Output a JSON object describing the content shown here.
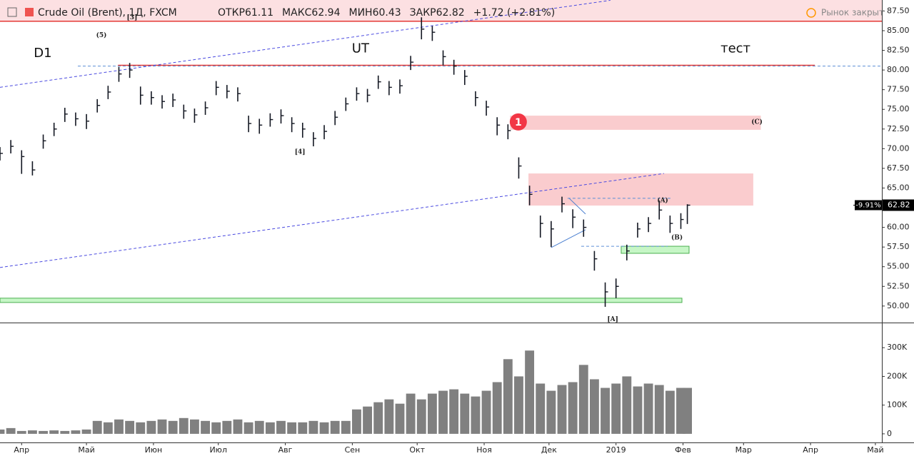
{
  "chart_data": {
    "type": "ohlc",
    "title": "Crude Oil (Brent), 1Д, FXCM",
    "ohlc_header": [
      "ОТКР61.11",
      "МАКС62.94",
      "МИН60.43",
      "ЗАКР62.82",
      "+1.72 (+2.81%)"
    ],
    "status": "Рынок закрыт",
    "x": [
      -10,
      -5,
      0,
      5,
      10,
      15,
      20,
      25,
      30,
      35,
      40,
      45,
      50,
      55,
      60,
      65,
      70,
      75,
      80,
      85,
      90,
      95,
      100,
      105,
      110,
      115,
      120,
      125,
      130,
      135,
      140,
      145,
      150,
      155,
      160,
      165,
      170,
      175,
      180,
      185,
      190,
      195,
      200,
      205,
      210,
      215,
      220,
      225,
      230,
      235,
      240,
      245,
      250,
      255,
      260,
      265,
      270,
      275,
      280,
      285,
      290,
      295,
      300,
      305,
      308
    ],
    "high": [
      70.2,
      71.1,
      69.8,
      68.4,
      71.8,
      73.3,
      75.2,
      74.6,
      74.4,
      76.3,
      78.0,
      80.4,
      80.9,
      77.9,
      77.3,
      76.8,
      77.0,
      75.6,
      75.1,
      76.0,
      78.6,
      78.1,
      77.8,
      74.2,
      73.8,
      74.5,
      75.0,
      74.0,
      73.3,
      72.1,
      73.0,
      74.8,
      76.5,
      77.8,
      77.6,
      79.3,
      78.6,
      78.8,
      81.8,
      86.7,
      85.6,
      82.5,
      81.3,
      80.0,
      77.3,
      76.1,
      74.0,
      73.1,
      68.9,
      65.3,
      61.5,
      60.8,
      63.9,
      62.3,
      61.0,
      57.0,
      53.0,
      53.5,
      57.8,
      60.6,
      61.3,
      63.4,
      61.5,
      61.8,
      62.94
    ],
    "low": [
      68.5,
      69.4,
      66.8,
      66.6,
      70.0,
      71.6,
      73.4,
      72.9,
      72.5,
      74.6,
      76.3,
      78.5,
      79.0,
      75.6,
      75.6,
      75.1,
      75.3,
      73.8,
      73.3,
      74.3,
      76.8,
      76.4,
      76.0,
      72.1,
      71.9,
      72.8,
      73.2,
      72.1,
      71.4,
      70.3,
      71.2,
      73.0,
      74.8,
      76.1,
      75.9,
      77.6,
      76.8,
      77.0,
      80.0,
      83.9,
      83.7,
      80.6,
      79.4,
      78.1,
      75.4,
      74.2,
      71.7,
      71.2,
      66.2,
      62.8,
      58.7,
      57.5,
      61.9,
      59.9,
      58.8,
      54.5,
      49.9,
      51.0,
      55.8,
      58.7,
      59.4,
      61.0,
      59.3,
      59.8,
      60.43
    ],
    "close": [
      69.4,
      70.3,
      69.0,
      67.3,
      71.0,
      72.5,
      74.4,
      73.8,
      73.5,
      75.5,
      77.2,
      79.5,
      80.0,
      76.8,
      76.5,
      76.0,
      76.2,
      74.8,
      74.3,
      75.2,
      77.8,
      77.3,
      77.0,
      73.2,
      73.0,
      73.7,
      74.2,
      73.2,
      72.5,
      71.3,
      72.2,
      74.0,
      75.7,
      77.0,
      76.8,
      78.5,
      77.8,
      78.0,
      81.0,
      85.2,
      84.8,
      81.7,
      80.5,
      79.2,
      76.5,
      75.3,
      73.0,
      72.3,
      67.8,
      64.2,
      60.5,
      59.8,
      63.0,
      61.3,
      60.0,
      56.0,
      51.8,
      52.5,
      57.0,
      59.8,
      60.5,
      62.2,
      60.5,
      61.0,
      62.82
    ],
    "volume": [
      15000,
      20000,
      10000,
      12000,
      10000,
      12000,
      10000,
      12000,
      15000,
      45000,
      40000,
      50000,
      45000,
      40000,
      45000,
      50000,
      45000,
      55000,
      50000,
      45000,
      40000,
      45000,
      50000,
      40000,
      45000,
      40000,
      45000,
      40000,
      40000,
      45000,
      40000,
      45000,
      45000,
      85000,
      95000,
      110000,
      120000,
      105000,
      140000,
      120000,
      140000,
      150000,
      155000,
      140000,
      130000,
      150000,
      180000,
      260000,
      200000,
      290000,
      175000,
      150000,
      170000,
      180000,
      240000,
      190000,
      160000,
      175000,
      200000,
      165000,
      175000,
      170000,
      150000,
      160000,
      160000
    ],
    "color": "#131722",
    "volume_color": "#808080",
    "xlim": [
      -10,
      398
    ],
    "xticks": [
      {
        "value": 0,
        "label": "Апр"
      },
      {
        "value": 30,
        "label": "Май"
      },
      {
        "value": 61,
        "label": "Июн"
      },
      {
        "value": 91,
        "label": "Июл"
      },
      {
        "value": 122,
        "label": "Авг"
      },
      {
        "value": 153,
        "label": "Сен"
      },
      {
        "value": 183,
        "label": "Окт"
      },
      {
        "value": 214,
        "label": "Ноя"
      },
      {
        "value": 244,
        "label": "Дек"
      },
      {
        "value": 275,
        "label": "2019"
      },
      {
        "value": 306,
        "label": "Фев"
      },
      {
        "value": 334,
        "label": "Мар"
      },
      {
        "value": 365,
        "label": "Апр"
      },
      {
        "value": 395,
        "label": "Май"
      }
    ],
    "ylim": [
      47.9,
      88.9
    ],
    "yticks": [
      {
        "value": 50,
        "label": "50.00"
      },
      {
        "value": 52.5,
        "label": "52.50"
      },
      {
        "value": 55,
        "label": "55.00"
      },
      {
        "value": 57.5,
        "label": "57.50"
      },
      {
        "value": 60,
        "label": "60.00"
      },
      {
        "value": 62.5,
        "label": "62.50"
      },
      {
        "value": 65,
        "label": "65.00"
      },
      {
        "value": 67.5,
        "label": "67.50"
      },
      {
        "value": 70,
        "label": "70.00"
      },
      {
        "value": 72.5,
        "label": "72.50"
      },
      {
        "value": 75,
        "label": "75.00"
      },
      {
        "value": 77.5,
        "label": "77.50"
      },
      {
        "value": 80,
        "label": "80.00"
      },
      {
        "value": 82.5,
        "label": "82.50"
      },
      {
        "value": 85,
        "label": "85.00"
      },
      {
        "value": 87.5,
        "label": "87.50"
      }
    ],
    "y2lim": [
      -30000,
      385000
    ],
    "y2ticks": [
      0,
      {
        "value": 100000,
        "label": "100K"
      },
      {
        "value": 200000,
        "label": "200K"
      },
      {
        "value": 300000,
        "label": "300K"
      }
    ],
    "last_price": {
      "value": 62.82,
      "label": "62.82"
    },
    "change_label": "-9.91%",
    "zones": [
      {
        "from": 86.2,
        "to": 88.9,
        "x": [
          -10,
          398
        ],
        "color": "rgba(248,187,190,0.45)"
      },
      {
        "from": 72.4,
        "to": 74.2,
        "x": [
          226,
          342
        ],
        "color": "rgba(248,187,190,0.75)"
      },
      {
        "from": 62.77,
        "to": 66.85,
        "x": [
          234.5,
          338.5
        ],
        "color": "rgba(248,187,190,0.75)"
      },
      {
        "from": 56.7,
        "to": 57.6,
        "x": [
          277.4,
          308.8
        ],
        "color": "rgba(160,240,160,0.6)"
      },
      {
        "from": 50.45,
        "to": 51.0,
        "x": [
          -10,
          305.5
        ],
        "color": "rgba(160,240,160,0.6)"
      }
    ],
    "levels": [
      {
        "value": 86.2,
        "x": [
          -10,
          398
        ],
        "color": "#e53935",
        "dash": false
      },
      {
        "value": 80.6,
        "x": [
          44.6,
          367
        ],
        "color": "#e53935",
        "dash": false
      },
      {
        "value": 80.5,
        "x": [
          26,
          398
        ],
        "color": "#5c8fd6",
        "dash": true
      },
      {
        "value": 63.7,
        "x": [
          252.6,
          300.7
        ],
        "color": "#5c8fd6",
        "dash": true
      },
      {
        "value": 57.6,
        "x": [
          258.9,
          298.9
        ],
        "color": "#5c8fd6",
        "dash": true
      }
    ],
    "trendlines": [
      {
        "x": [
          -10,
          272.4
        ],
        "y": [
          77.8,
          88.86
        ],
        "color": "#4a4ae0",
        "dash": true
      },
      {
        "x": [
          -10,
          297.2
        ],
        "y": [
          54.9,
          66.85
        ],
        "color": "#4a4ae0",
        "dash": true
      },
      {
        "x": [
          245,
          260.9
        ],
        "y": [
          57.43,
          59.7
        ],
        "color": "#4a7fd0",
        "dash": false
      },
      {
        "x": [
          253.3,
          260.9
        ],
        "y": [
          63.7,
          61.7
        ],
        "color": "#4a7fd0",
        "dash": false
      }
    ],
    "labels": [
      {
        "text": "D1",
        "x": 9.8,
        "y": 82.1
      },
      {
        "text": "UT",
        "x": 156.8,
        "y": 82.7
      },
      {
        "text": "тест",
        "x": 330.3,
        "y": 82.7
      }
    ],
    "wave_labels": [
      {
        "text": "(5)",
        "x": 36.9,
        "y": 84.4
      },
      {
        "text": "[3]",
        "x": 51.1,
        "y": 86.7
      },
      {
        "text": "[4]",
        "x": 128.8,
        "y": 69.6
      },
      {
        "text": "(A)",
        "x": 296.6,
        "y": 63.4
      },
      {
        "text": "(B)",
        "x": 303.2,
        "y": 58.7
      },
      {
        "text": "(C)",
        "x": 340.2,
        "y": 73.4
      },
      {
        "text": "[A]",
        "x": 273.5,
        "y": 48.3
      }
    ],
    "marker": {
      "text": "1",
      "x": 229.8,
      "y": 73.4
    }
  }
}
